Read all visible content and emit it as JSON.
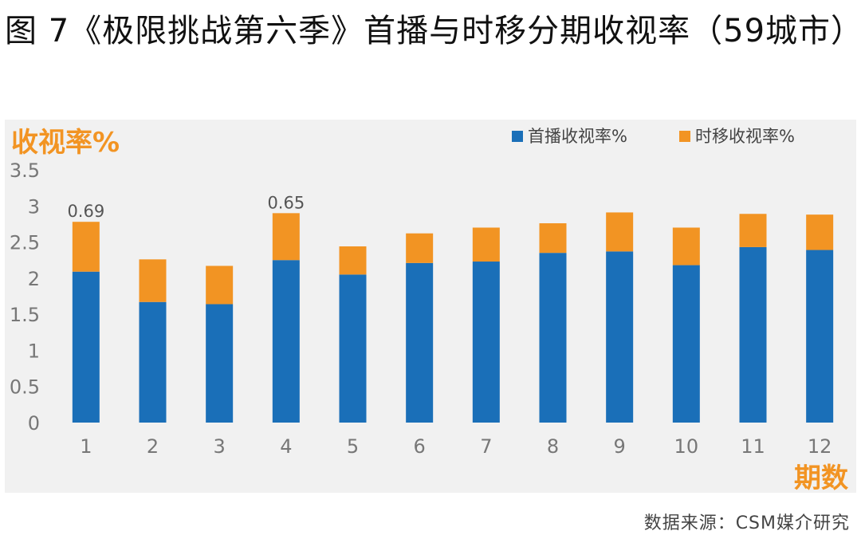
{
  "title": "图 7《极限挑战第六季》首播与时移分期收视率（59城市）",
  "source": "数据来源：CSM媒介研究",
  "colors": {
    "primary": "#1a6fb8",
    "secondary": "#f29423",
    "panel": "#f1f1f1",
    "axis_text": "#777777"
  },
  "chart_data": {
    "type": "bar",
    "stacked": true,
    "ylabel": "收视率%",
    "xlabel": "期数",
    "ylim": [
      0,
      3.5
    ],
    "yticks": [
      "0",
      "0.5",
      "1",
      "1.5",
      "2",
      "2.5",
      "3",
      "3.5"
    ],
    "categories": [
      "1",
      "2",
      "3",
      "4",
      "5",
      "6",
      "7",
      "8",
      "9",
      "10",
      "11",
      "12"
    ],
    "series": [
      {
        "name": "首播收视率%",
        "values": [
          2.09,
          1.67,
          1.64,
          2.25,
          2.05,
          2.21,
          2.23,
          2.35,
          2.37,
          2.18,
          2.43,
          2.39
        ]
      },
      {
        "name": "时移收视率%",
        "values": [
          0.69,
          0.59,
          0.53,
          0.65,
          0.39,
          0.41,
          0.47,
          0.41,
          0.54,
          0.52,
          0.46,
          0.49
        ]
      }
    ],
    "data_labels": [
      {
        "category": "1",
        "series": "时移收视率%",
        "text": "0.69"
      },
      {
        "category": "4",
        "series": "时移收视率%",
        "text": "0.65"
      }
    ],
    "legend": "top-right",
    "grid": false
  }
}
